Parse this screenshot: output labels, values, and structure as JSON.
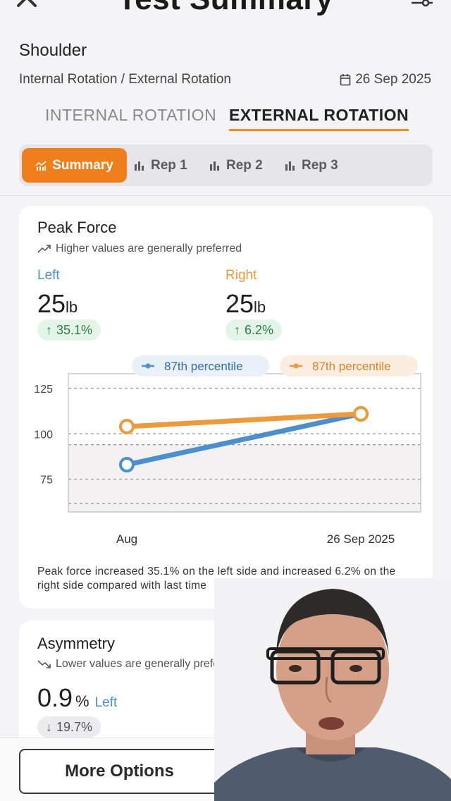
{
  "header": {
    "title": "Test Summary"
  },
  "test": {
    "body_part": "Shoulder",
    "name": "Internal Rotation / External Rotation",
    "date": "26 Sep 2025"
  },
  "tabs": [
    {
      "label": "INTERNAL ROTATION",
      "active": false
    },
    {
      "label": "EXTERNAL ROTATION",
      "active": true
    }
  ],
  "segments": [
    {
      "label": "Summary",
      "active": true
    },
    {
      "label": "Rep 1",
      "active": false
    },
    {
      "label": "Rep 2",
      "active": false
    },
    {
      "label": "Rep 3",
      "active": false
    }
  ],
  "peak_force": {
    "title": "Peak Force",
    "hint": "Higher values are generally preferred",
    "left": {
      "label": "Left",
      "value": "25",
      "unit": "lb",
      "change": "35.1%"
    },
    "right": {
      "label": "Right",
      "value": "25",
      "unit": "lb",
      "change": "6.2%"
    },
    "summary": "Peak force increased 35.1% on the left side and increased 6.2% on the right side compared with last time"
  },
  "chart_data": {
    "type": "line",
    "x": [
      "Aug",
      "26 Sep 2025"
    ],
    "y_ticks": [
      125,
      100,
      75
    ],
    "ylim": [
      57,
      137
    ],
    "grid": true,
    "series": [
      {
        "name": "Left",
        "legend": "87th percentile",
        "color": "#4a8fd0",
        "values": [
          83,
          111
        ]
      },
      {
        "name": "Right",
        "legend": "87th percentile",
        "color": "#ef9a3a",
        "values": [
          104,
          111
        ]
      }
    ],
    "reference_band": [
      57,
      94
    ]
  },
  "asymmetry": {
    "title": "Asymmetry",
    "hint": "Lower values are generally preferred",
    "value": "0.9",
    "unit": "%",
    "side": "Left",
    "change": "19.7%"
  },
  "footer": {
    "more_options_label": "More Options"
  },
  "colors": {
    "accent": "#ef7f1a",
    "left": "#4a8fd0",
    "right": "#ef9a3a",
    "positive": "#2e7d46"
  }
}
